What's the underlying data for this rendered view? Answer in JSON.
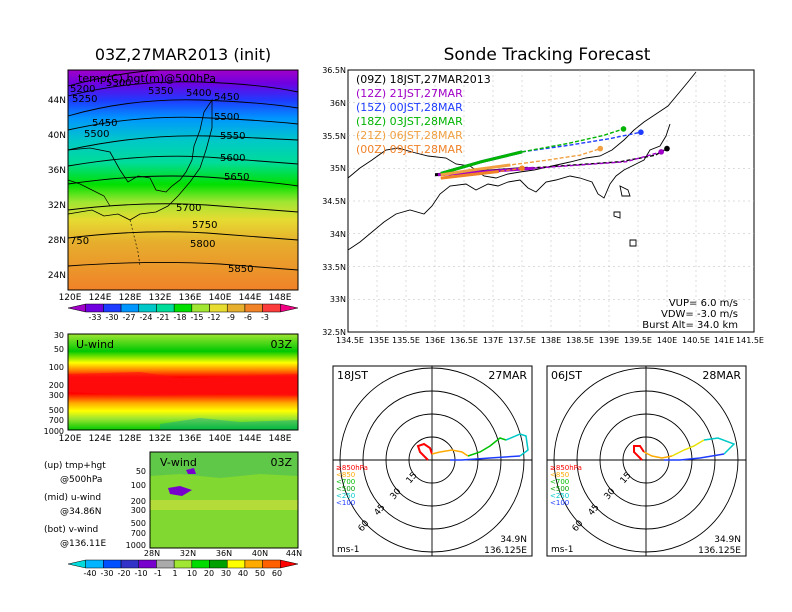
{
  "left_title": "03Z,27MAR2013 (init)",
  "right_title": "Sonde Tracking Forecast",
  "colors": {
    "temp_bar": [
      "#a000c8",
      "#7000e0",
      "#1e3cff",
      "#0096ff",
      "#00c8c8",
      "#00dc9a",
      "#00e000",
      "#a0e632",
      "#e6dc32",
      "#e6af2d",
      "#f08228",
      "#fa3c3c",
      "#f00082"
    ],
    "wind_bar": [
      "#00dcdc",
      "#00b4ff",
      "#0050ff",
      "#3232c8",
      "#7700cc",
      "#aaaaaa",
      "#a0e632",
      "#00dc00",
      "#00a000",
      "#ffff00",
      "#ffaa00",
      "#ff6000",
      "#ff0000"
    ],
    "launches": [
      "#000000",
      "#a000c8",
      "#1e3cff",
      "#00b400",
      "#f0a040",
      "#f08228"
    ]
  },
  "chart_data": [
    {
      "type": "heatmap",
      "panel": "temperature_height_500hPa",
      "legend_text": "temp(C),hgt(m)@500hPa",
      "x_ticks": [
        "120E",
        "124E",
        "128E",
        "132E",
        "136E",
        "140E",
        "144E",
        "148E"
      ],
      "y_ticks": [
        "24N",
        "28N",
        "32N",
        "36N",
        "40N",
        "44N"
      ],
      "xlim": [
        120,
        150
      ],
      "ylim": [
        22,
        47
      ],
      "contour_labels": [
        "5200",
        "5250",
        "5300",
        "5350",
        "5400",
        "5450",
        "5450",
        "5500",
        "5500",
        "5550",
        "5600",
        "5650",
        "5700",
        "5750",
        "750",
        "5800",
        "5850"
      ],
      "colorbar_labels": [
        "-33",
        "-30",
        "-27",
        "-24",
        "-21",
        "-18",
        "-15",
        "-12",
        "-9",
        "-6",
        "-3"
      ]
    },
    {
      "type": "heatmap",
      "panel": "u_wind",
      "label": "U-wind",
      "time": "03Z",
      "y_ticks": [
        "30",
        "50",
        "100",
        "200",
        "300",
        "500",
        "700",
        "1000"
      ],
      "x_ticks": [
        "120E",
        "124E",
        "128E",
        "132E",
        "136E",
        "140E",
        "144E",
        "148E"
      ]
    },
    {
      "type": "heatmap",
      "panel": "v_wind",
      "label": "V-wind",
      "time": "03Z",
      "y_ticks": [
        "50",
        "100",
        "200",
        "300",
        "500",
        "700",
        "1000"
      ],
      "x_ticks": [
        "28N",
        "32N",
        "36N",
        "40N",
        "44N"
      ],
      "colorbar_labels": [
        "-40",
        "-30",
        "-20",
        "-10",
        "-1",
        "1",
        "10",
        "20",
        "30",
        "40",
        "50",
        "60"
      ]
    },
    {
      "type": "line",
      "panel": "sonde_track_map",
      "x_ticks": [
        "134.5E",
        "135E",
        "135.5E",
        "136E",
        "136.5E",
        "137E",
        "137.5E",
        "138E",
        "138.5E",
        "139E",
        "139.5E",
        "140E",
        "140.5E",
        "141E",
        "141.5E"
      ],
      "y_ticks": [
        "32.5N",
        "33N",
        "33.5N",
        "34N",
        "34.5N",
        "35N",
        "35.5N",
        "36N",
        "36.5N"
      ],
      "xlim": [
        134.5,
        141.5
      ],
      "ylim": [
        32.5,
        36.5
      ],
      "series": [
        {
          "name": "(09Z)  18JST,27MAR2013",
          "x": [
            136.0,
            136.8,
            137.6,
            138.4,
            139.2,
            139.8,
            140.0
          ],
          "y": [
            34.9,
            34.95,
            35.0,
            35.05,
            35.1,
            35.2,
            35.3
          ]
        },
        {
          "name": "(12Z)  21JST,27MAR",
          "x": [
            136.05,
            136.9,
            137.7,
            138.5,
            139.3,
            139.9
          ],
          "y": [
            34.9,
            34.95,
            35.0,
            35.05,
            35.1,
            35.25
          ]
        },
        {
          "name": "(15Z)  00JST,28MAR",
          "x": [
            136.1,
            136.8,
            137.5,
            138.3,
            139.0,
            139.55
          ],
          "y": [
            34.92,
            35.1,
            35.25,
            35.35,
            35.45,
            35.55
          ]
        },
        {
          "name": "(18Z)  03JST,28MAR",
          "x": [
            136.1,
            136.8,
            137.5,
            138.3,
            138.9,
            139.25
          ],
          "y": [
            34.92,
            35.1,
            35.25,
            35.38,
            35.5,
            35.6
          ]
        },
        {
          "name": "(21Z)  06JST,28MAR",
          "x": [
            136.1,
            136.7,
            137.3,
            137.9,
            138.5,
            138.85
          ],
          "y": [
            34.9,
            34.98,
            35.05,
            35.12,
            35.2,
            35.3
          ]
        },
        {
          "name": "(00Z)  09JST,28MAR",
          "x": [
            136.1,
            136.6,
            137.1,
            137.5
          ],
          "y": [
            34.85,
            34.9,
            34.95,
            35.0
          ]
        }
      ],
      "params": {
        "vup": "VUP=  6.0  m/s",
        "vdw": "VDW=  -3.0  m/s",
        "burst": "Burst Alt=  34.0  km"
      }
    },
    {
      "type": "line",
      "panel": "hodograph_18JST",
      "label_left": "18JST",
      "label_right": "27MAR",
      "ring_labels": [
        "15",
        "30",
        "45",
        "60"
      ],
      "legend": [
        "≥850hPa",
        "<850",
        "<700",
        "<500",
        "<250",
        "<100"
      ],
      "unit": "ms-1",
      "location": [
        "34.9N",
        "136.125E"
      ]
    },
    {
      "type": "line",
      "panel": "hodograph_06JST",
      "label_left": "06JST",
      "label_right": "28MAR",
      "ring_labels": [
        "15",
        "30",
        "45",
        "60"
      ],
      "legend": [
        "≥850hPa",
        "<850",
        "<700",
        "<500",
        "<250",
        "<100"
      ],
      "unit": "ms-1",
      "location": [
        "34.9N",
        "136.125E"
      ]
    }
  ],
  "side_labels": {
    "up": "(up) tmp+hgt",
    "up2": "@500hPa",
    "mid": "(mid) u-wind",
    "mid2": "@34.86N",
    "bot": "(bot) v-wind",
    "bot2": "@136.11E"
  }
}
